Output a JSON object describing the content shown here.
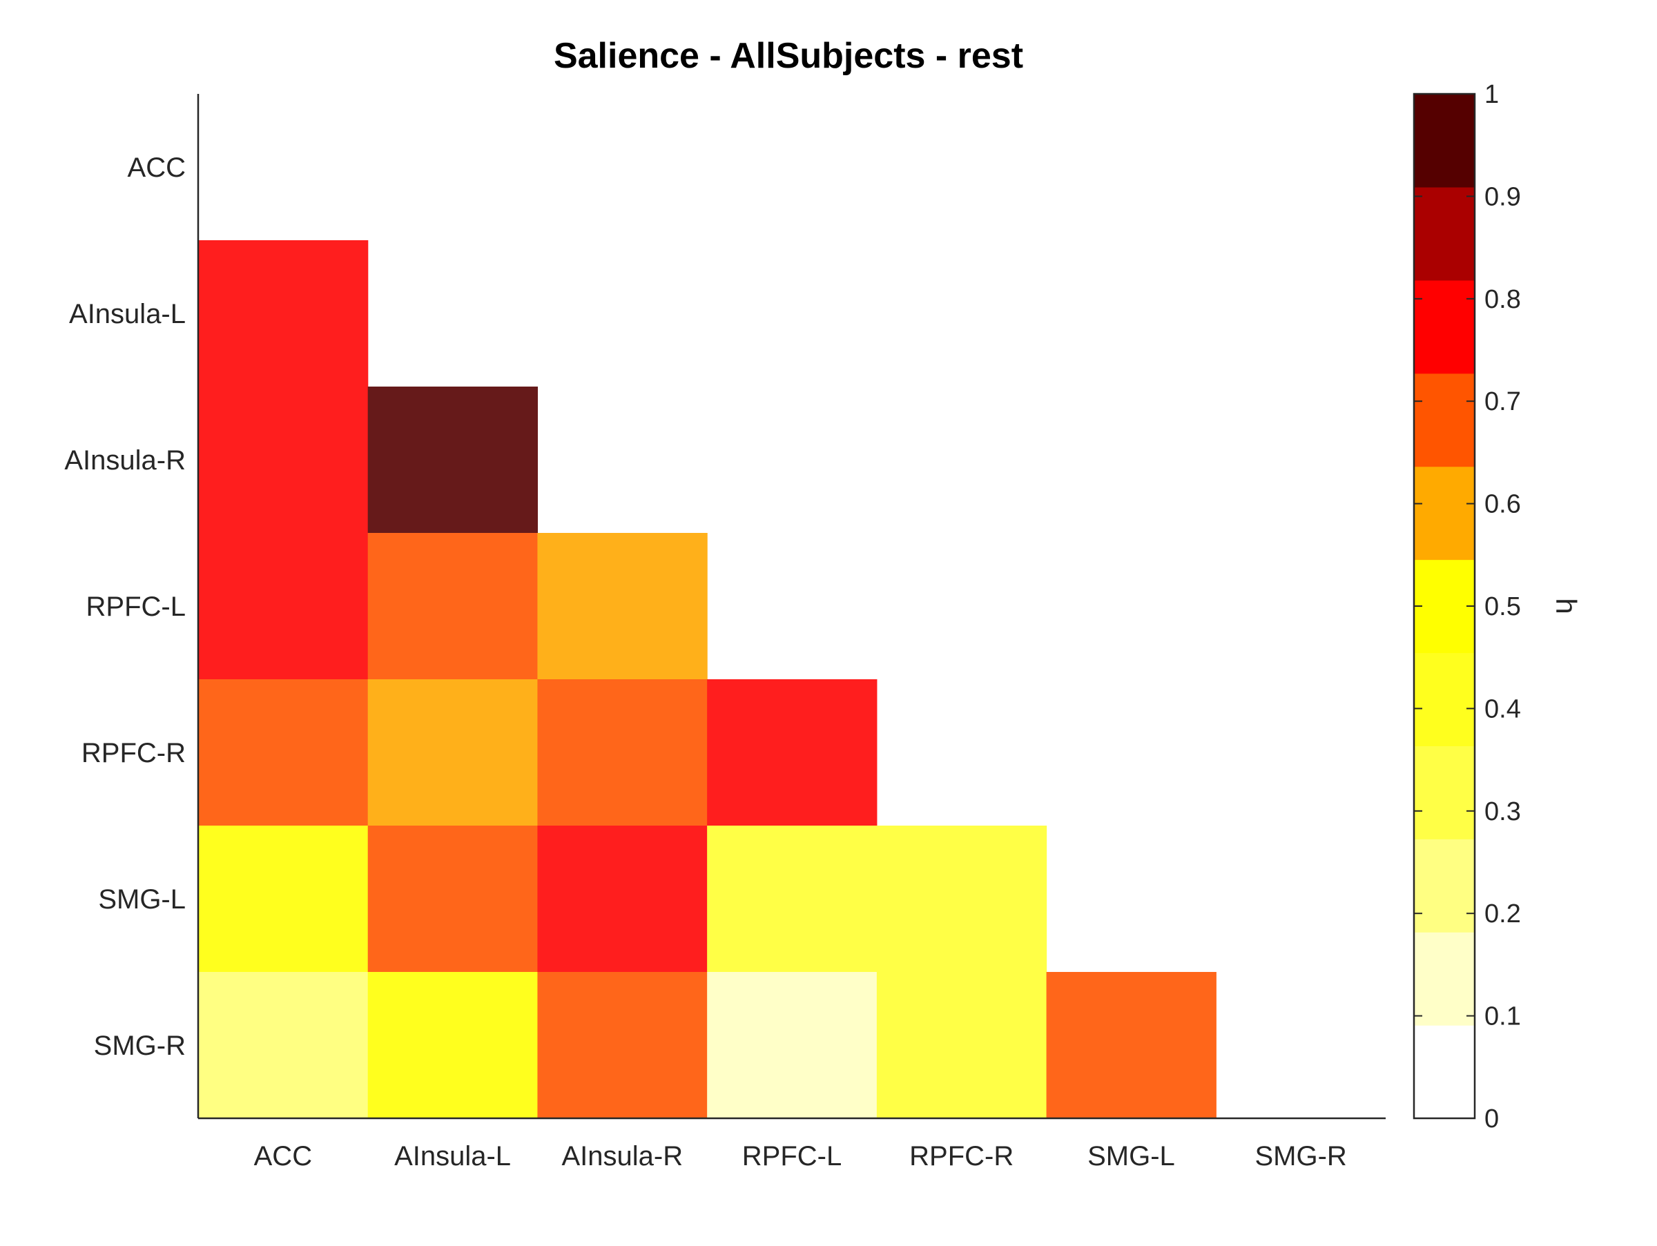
{
  "chart_data": {
    "type": "heatmap",
    "title": "Salience - AllSubjects - rest",
    "row_labels": [
      "ACC",
      "AInsula-L",
      "AInsula-R",
      "RPFC-L",
      "RPFC-R",
      "SMG-L",
      "SMG-R"
    ],
    "col_labels": [
      "ACC",
      "AInsula-L",
      "AInsula-R",
      "RPFC-L",
      "RPFC-R",
      "SMG-L",
      "SMG-R"
    ],
    "matrix_shape": "lower-triangular",
    "values": [
      [
        null,
        null,
        null,
        null,
        null,
        null,
        null
      ],
      [
        0.75,
        null,
        null,
        null,
        null,
        null,
        null
      ],
      [
        0.75,
        0.95,
        null,
        null,
        null,
        null,
        null
      ],
      [
        0.75,
        0.65,
        0.55,
        null,
        null,
        null,
        null
      ],
      [
        0.65,
        0.55,
        0.65,
        0.75,
        null,
        null,
        null
      ],
      [
        0.45,
        0.65,
        0.75,
        0.35,
        0.35,
        null,
        null
      ],
      [
        0.25,
        0.45,
        0.65,
        0.15,
        0.35,
        0.65,
        null
      ]
    ],
    "cell_colors": [
      [
        null,
        null,
        null,
        null,
        null,
        null,
        null
      ],
      [
        "#ff1e1e",
        null,
        null,
        null,
        null,
        null,
        null
      ],
      [
        "#ff1e1e",
        "#661a1a",
        null,
        null,
        null,
        null,
        null
      ],
      [
        "#ff1e1e",
        "#ff661a",
        "#ffb01a",
        null,
        null,
        null,
        null
      ],
      [
        "#ff661a",
        "#ffb01a",
        "#ff661a",
        "#ff1e1e",
        null,
        null,
        null
      ],
      [
        "#ffff1e",
        "#ff661a",
        "#ff1e1e",
        "#ffff46",
        "#ffff46",
        null,
        null
      ],
      [
        "#ffff82",
        "#ffff1e",
        "#ff661a",
        "#ffffc8",
        "#ffff46",
        "#ff661a",
        null
      ]
    ],
    "colorbar": {
      "label": "h",
      "range": [
        0,
        1
      ],
      "ticks": [
        "0",
        "0.1",
        "0.2",
        "0.3",
        "0.4",
        "0.5",
        "0.6",
        "0.7",
        "0.8",
        "0.9",
        "1"
      ],
      "colors": [
        "#ffffff",
        "#ffffc8",
        "#ffff82",
        "#ffff46",
        "#ffff1e",
        "#ffff00",
        "#ffaa00",
        "#ff5500",
        "#ff0000",
        "#aa0000",
        "#550000"
      ]
    },
    "grid": false
  }
}
